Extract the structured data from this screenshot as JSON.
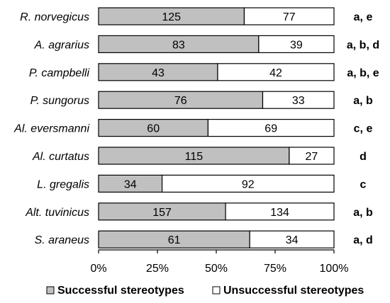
{
  "chart_data": {
    "type": "bar",
    "orientation": "horizontal",
    "stacked": "percent",
    "categories": [
      "R. norvegicus",
      "A. agrarius",
      "P. campbelli",
      "P. sungorus",
      "Al. eversmanni",
      "Al. curtatus",
      "L. gregalis",
      "Alt. tuvinicus",
      "S. araneus"
    ],
    "series": [
      {
        "name": "Successful stereotypes",
        "values": [
          125,
          83,
          43,
          76,
          60,
          115,
          34,
          157,
          61
        ],
        "color": "#c0c0c0"
      },
      {
        "name": "Unsuccessful stereotypes",
        "values": [
          77,
          39,
          42,
          33,
          69,
          27,
          92,
          134,
          34
        ],
        "color": "#ffffff"
      }
    ],
    "annotations": [
      "a, e",
      "a, b, d",
      "a, b, e",
      "a, b",
      "c, e",
      "d",
      "c",
      "a, b",
      "a, d"
    ],
    "x_ticks": [
      "0%",
      "25%",
      "50%",
      "75%",
      "100%"
    ],
    "xlim": [
      0,
      100
    ],
    "legend_position": "bottom",
    "grid": false
  }
}
